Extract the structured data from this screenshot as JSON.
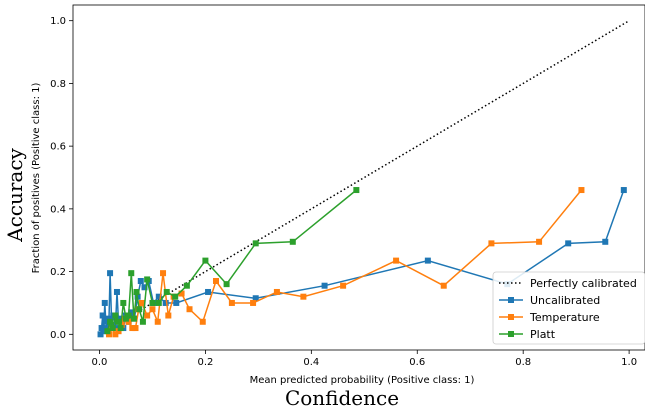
{
  "chart_data": {
    "type": "line",
    "xlabel": "Mean predicted probability (Positive class: 1)",
    "ylabel": "Fraction of positives (Positive class: 1)",
    "outer_xlabel": "Confidence",
    "outer_ylabel": "Accuracy",
    "xlim": [
      -0.05,
      1.03
    ],
    "ylim": [
      -0.05,
      1.05
    ],
    "xticks": [
      0.0,
      0.2,
      0.4,
      0.6,
      0.8,
      1.0
    ],
    "yticks": [
      0.0,
      0.2,
      0.4,
      0.6,
      0.8,
      1.0
    ],
    "xtick_labels": [
      "0.0",
      "0.2",
      "0.4",
      "0.6",
      "0.8",
      "1.0"
    ],
    "ytick_labels": [
      "0.0",
      "0.2",
      "0.4",
      "0.6",
      "0.8",
      "1.0"
    ],
    "grid": false,
    "legend_position": "lower right",
    "series": [
      {
        "name": "Perfectly calibrated",
        "color": "#000000",
        "style": "dotted",
        "marker": "none",
        "x": [
          0.0,
          1.0
        ],
        "y": [
          0.0,
          1.0
        ]
      },
      {
        "name": "Uncalibrated",
        "color": "#1f77b4",
        "style": "solid",
        "marker": "square",
        "x": [
          0.002,
          0.004,
          0.006,
          0.008,
          0.01,
          0.012,
          0.015,
          0.018,
          0.02,
          0.023,
          0.026,
          0.03,
          0.033,
          0.036,
          0.04,
          0.045,
          0.05,
          0.055,
          0.06,
          0.066,
          0.072,
          0.078,
          0.085,
          0.093,
          0.102,
          0.112,
          0.125,
          0.145,
          0.205,
          0.295,
          0.425,
          0.62,
          0.77,
          0.885,
          0.955,
          0.99
        ],
        "y": [
          0.0,
          0.02,
          0.06,
          0.01,
          0.1,
          0.04,
          0.02,
          0.05,
          0.195,
          0.03,
          0.06,
          0.02,
          0.135,
          0.04,
          0.05,
          0.02,
          0.06,
          0.04,
          0.07,
          0.05,
          0.12,
          0.17,
          0.15,
          0.17,
          0.1,
          0.12,
          0.1,
          0.1,
          0.135,
          0.115,
          0.155,
          0.235,
          0.16,
          0.29,
          0.295,
          0.46
        ]
      },
      {
        "name": "Temperature",
        "color": "#ff7f0e",
        "style": "solid",
        "marker": "square",
        "x": [
          0.018,
          0.024,
          0.03,
          0.036,
          0.042,
          0.048,
          0.055,
          0.062,
          0.068,
          0.074,
          0.08,
          0.09,
          0.1,
          0.11,
          0.12,
          0.13,
          0.14,
          0.155,
          0.17,
          0.195,
          0.22,
          0.25,
          0.29,
          0.335,
          0.385,
          0.46,
          0.56,
          0.65,
          0.74,
          0.83,
          0.91
        ],
        "y": [
          0.0,
          0.02,
          0.0,
          0.01,
          0.03,
          0.05,
          0.04,
          0.02,
          0.02,
          0.08,
          0.1,
          0.06,
          0.08,
          0.04,
          0.195,
          0.06,
          0.12,
          0.13,
          0.08,
          0.04,
          0.17,
          0.1,
          0.1,
          0.135,
          0.12,
          0.155,
          0.235,
          0.155,
          0.29,
          0.295,
          0.46
        ]
      },
      {
        "name": "Platt",
        "color": "#2ca02c",
        "style": "solid",
        "marker": "square",
        "x": [
          0.015,
          0.02,
          0.025,
          0.03,
          0.035,
          0.04,
          0.045,
          0.05,
          0.055,
          0.06,
          0.065,
          0.07,
          0.075,
          0.082,
          0.09,
          0.1,
          0.112,
          0.127,
          0.143,
          0.165,
          0.2,
          0.24,
          0.295,
          0.365,
          0.485
        ],
        "y": [
          0.01,
          0.04,
          0.02,
          0.06,
          0.04,
          0.02,
          0.1,
          0.05,
          0.06,
          0.195,
          0.05,
          0.135,
          0.08,
          0.04,
          0.175,
          0.1,
          0.1,
          0.135,
          0.12,
          0.155,
          0.235,
          0.16,
          0.29,
          0.295,
          0.46
        ]
      }
    ]
  }
}
